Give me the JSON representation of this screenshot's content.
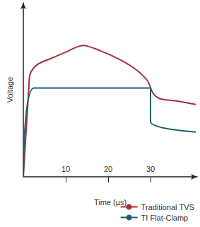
{
  "chart_data": {
    "type": "line",
    "x_label": "Time (µs)",
    "y_label": "Voltage",
    "xlim": [
      0,
      41
    ],
    "xticks": [
      10,
      20,
      30
    ],
    "ylim": [
      0,
      100
    ],
    "tick_labels": "x",
    "grid": false,
    "legend": "bottom-right",
    "series": [
      {
        "name": "Traditional TVS",
        "color": "#a0333b",
        "x": [
          0,
          1.3,
          1.6,
          3.3,
          6.5,
          9.8,
          14.1,
          17.9,
          22.8,
          26.8,
          29.3,
          30.6,
          32.2,
          35.8,
          40.7
        ],
        "values": [
          0,
          51,
          59,
          64.5,
          68,
          71.4,
          75.5,
          72.7,
          67.3,
          61.2,
          55.1,
          48,
          44.9,
          43.7,
          41.6
        ]
      },
      {
        "name": "TI Flat-Clamp",
        "color": "#1d5f6b",
        "x": [
          0,
          2.5,
          30,
          30,
          40.7
        ],
        "values": [
          0,
          51,
          51,
          31.8,
          25.7
        ]
      }
    ]
  }
}
